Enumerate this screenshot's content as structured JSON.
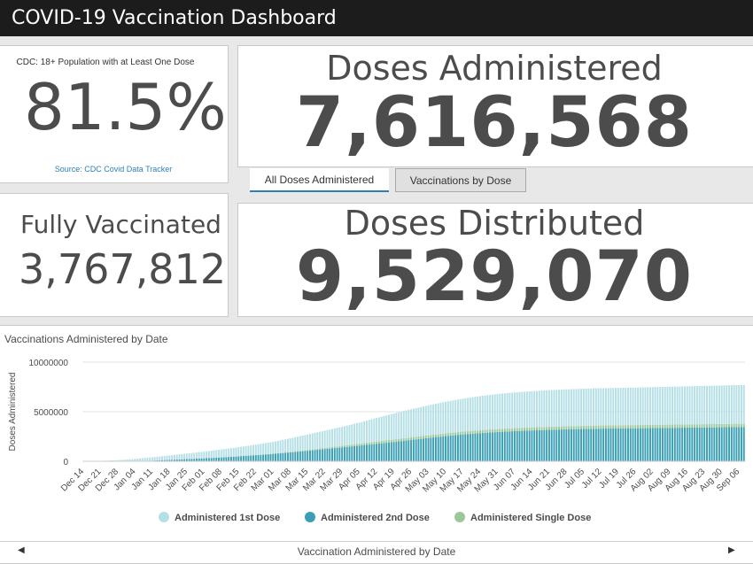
{
  "header": {
    "title": "COVID-19 Vaccination Dashboard"
  },
  "cdc_panel": {
    "title": "CDC: 18+ Population with at Least One Dose",
    "value": "81.5%",
    "source": "Source: CDC Covid Data Tracker"
  },
  "fully_vaccinated": {
    "title": "Fully Vaccinated",
    "value": "3,767,812"
  },
  "doses_administered": {
    "title": "Doses Administered",
    "value": "7,616,568"
  },
  "doses_distributed": {
    "title": "Doses Distributed",
    "value": "9,529,070"
  },
  "tabs": [
    {
      "label": "All Doses Administered",
      "active": true
    },
    {
      "label": "Vaccinations by Dose",
      "active": false
    }
  ],
  "chart_data": {
    "type": "bar",
    "stacked": true,
    "title": "Vaccinations Administered by Date",
    "ylabel": "Doses Administered",
    "ylim": [
      0,
      10000000
    ],
    "yticks": [
      "0",
      "5000000",
      "10000000"
    ],
    "categories": [
      "Dec 14",
      "Dec 21",
      "Dec 28",
      "Jan 04",
      "Jan 11",
      "Jan 18",
      "Jan 25",
      "Feb 01",
      "Feb 08",
      "Feb 15",
      "Feb 22",
      "Mar 01",
      "Mar 08",
      "Mar 15",
      "Mar 22",
      "Mar 29",
      "Apr 05",
      "Apr 12",
      "Apr 19",
      "Apr 26",
      "May 03",
      "May 10",
      "May 17",
      "May 24",
      "May 31",
      "Jun 07",
      "Jun 14",
      "Jun 21",
      "Jun 28",
      "Jul 05",
      "Jul 12",
      "Jul 19",
      "Jul 26",
      "Aug 02",
      "Aug 09",
      "Aug 16",
      "Aug 23",
      "Aug 30",
      "Sep 06"
    ],
    "series": [
      {
        "name": "Administered 1st Dose",
        "color": "#b5dfe6",
        "values": [
          5000,
          40000,
          110000,
          220000,
          330000,
          450000,
          560000,
          680000,
          800000,
          920000,
          1060000,
          1200000,
          1380000,
          1560000,
          1740000,
          1920000,
          2120000,
          2380000,
          2620000,
          2840000,
          3020000,
          3180000,
          3320000,
          3440000,
          3540000,
          3600000,
          3650000,
          3690000,
          3720000,
          3740000,
          3760000,
          3770000,
          3780000,
          3800000,
          3820000,
          3840000,
          3860000,
          3880000,
          3900000
        ]
      },
      {
        "name": "Administered 2nd Dose",
        "color": "#3a9fb5",
        "values": [
          0,
          0,
          0,
          20000,
          70000,
          140000,
          220000,
          300000,
          390000,
          500000,
          620000,
          750000,
          900000,
          1060000,
          1230000,
          1400000,
          1580000,
          1760000,
          1950000,
          2150000,
          2350000,
          2540000,
          2700000,
          2840000,
          2950000,
          3040000,
          3110000,
          3170000,
          3220000,
          3260000,
          3290000,
          3310000,
          3330000,
          3350000,
          3370000,
          3390000,
          3410000,
          3430000,
          3450000
        ]
      },
      {
        "name": "Administered Single Dose",
        "color": "#9cc79a",
        "values": [
          0,
          0,
          0,
          0,
          0,
          0,
          0,
          0,
          0,
          0,
          0,
          10000,
          40000,
          80000,
          120000,
          160000,
          200000,
          230000,
          250000,
          260000,
          270000,
          280000,
          290000,
          295000,
          300000,
          305000,
          310000,
          312000,
          314000,
          316000,
          318000,
          320000,
          322000,
          324000,
          326000,
          328000,
          330000,
          332000,
          334000
        ]
      }
    ],
    "legend_position": "bottom",
    "grid": true
  },
  "footer": {
    "label": "Vaccination Administered by Date"
  },
  "icons": {
    "left": "chevron-left-icon",
    "right": "chevron-right-icon"
  }
}
